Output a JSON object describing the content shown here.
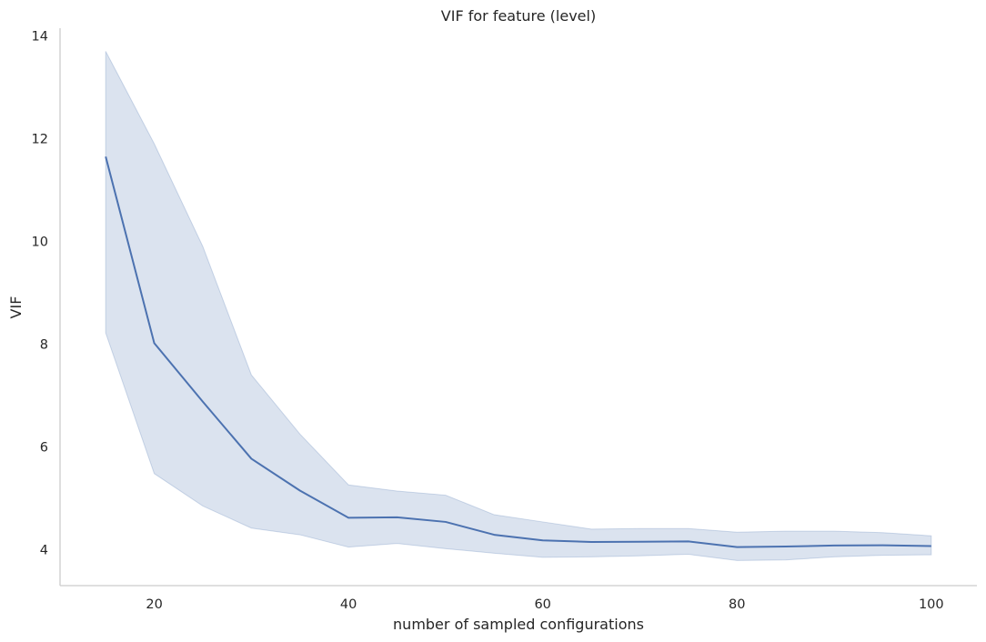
{
  "chart_data": {
    "type": "line",
    "title": "VIF for feature (level)",
    "xlabel": "number of sampled configurations",
    "ylabel": "VIF",
    "xlim": [
      10.3,
      104.7
    ],
    "ylim": [
      3.3,
      14.15
    ],
    "xticks": [
      20,
      40,
      60,
      80,
      100
    ],
    "yticks": [
      4,
      6,
      8,
      10,
      12,
      14
    ],
    "grid": false,
    "legend": "none",
    "series": [
      {
        "x": [
          15,
          20,
          25,
          30,
          35,
          40,
          45,
          50,
          55,
          60,
          65,
          70,
          75,
          80,
          85,
          90,
          95,
          100
        ],
        "values": [
          11.65,
          8.02,
          6.88,
          5.77,
          5.15,
          4.62,
          4.63,
          4.54,
          4.29,
          4.18,
          4.15,
          4.155,
          4.16,
          4.05,
          4.06,
          4.08,
          4.085,
          4.07
        ],
        "ci_upper": [
          13.7,
          11.9,
          9.9,
          7.4,
          6.25,
          5.26,
          5.14,
          5.06,
          4.68,
          4.54,
          4.4,
          4.41,
          4.41,
          4.34,
          4.36,
          4.36,
          4.33,
          4.27
        ],
        "ci_lower": [
          8.22,
          5.48,
          4.85,
          4.42,
          4.29,
          4.05,
          4.12,
          4.02,
          3.93,
          3.85,
          3.86,
          3.88,
          3.91,
          3.79,
          3.8,
          3.86,
          3.89,
          3.9
        ]
      }
    ],
    "colors": {
      "line": "#4c72b0",
      "band": "#4c72b0"
    }
  }
}
